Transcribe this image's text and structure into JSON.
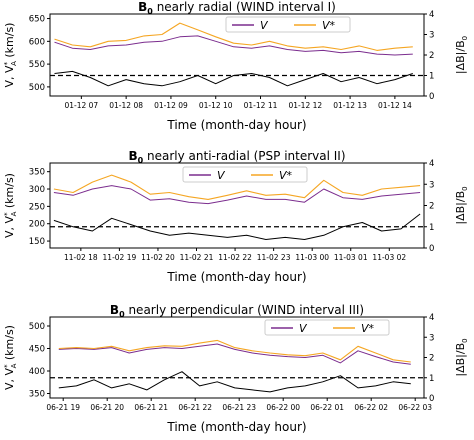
{
  "chart_data": [
    {
      "type": "line",
      "title_main": "B",
      "title_sub": "0",
      "title_rest": " nearly radial (WIND interval I)",
      "ylabel_left": "V, V",
      "ylabel_left_sup": "*",
      "ylabel_left_sub": "A",
      "ylabel_left_unit": " (km/s)",
      "ylabel_right": "|ΔB|/B",
      "ylabel_right_sub": "0",
      "xlabel": "Time (month-day hour)",
      "legend_position": "top-right",
      "ylim_left": [
        480,
        660
      ],
      "yticks_left": [
        500,
        550,
        600,
        650
      ],
      "ylim_right": [
        0,
        4
      ],
      "yticks_right": [
        0,
        1,
        2,
        3,
        4
      ],
      "xlim": [
        6.3,
        14.65
      ],
      "xticks": [
        7,
        8,
        9,
        10,
        11,
        12,
        13,
        14
      ],
      "xticklabels": [
        "01-12 07",
        "01-12 08",
        "01-12 09",
        "01-12 10",
        "01-12 11",
        "01-12 12",
        "01-12 13",
        "01-12 14"
      ],
      "reference_line": {
        "axis": "right",
        "value": 1,
        "style": "dashed"
      },
      "series": [
        {
          "name": "V",
          "color": "#7b2d8e",
          "axis": "left",
          "x": [
            6.4,
            6.8,
            7.2,
            7.6,
            8.0,
            8.4,
            8.8,
            9.2,
            9.6,
            10.0,
            10.4,
            10.8,
            11.2,
            11.6,
            12.0,
            12.4,
            12.8,
            13.2,
            13.6,
            14.0,
            14.4
          ],
          "y": [
            598,
            585,
            582,
            590,
            592,
            598,
            600,
            610,
            612,
            600,
            588,
            585,
            590,
            582,
            578,
            580,
            575,
            578,
            572,
            570,
            572
          ]
        },
        {
          "name": "V*",
          "color": "#f5a623",
          "axis": "left",
          "x": [
            6.4,
            6.8,
            7.2,
            7.6,
            8.0,
            8.4,
            8.8,
            9.2,
            9.6,
            10.0,
            10.4,
            10.8,
            11.2,
            11.6,
            12.0,
            12.4,
            12.8,
            13.2,
            13.6,
            14.0,
            14.4
          ],
          "y": [
            605,
            592,
            588,
            600,
            602,
            612,
            615,
            640,
            625,
            610,
            596,
            592,
            600,
            590,
            585,
            588,
            582,
            590,
            580,
            585,
            588
          ]
        },
        {
          "name": "",
          "color": "#000000",
          "axis": "right",
          "x": [
            6.4,
            6.8,
            7.2,
            7.6,
            8.0,
            8.4,
            8.8,
            9.2,
            9.6,
            10.0,
            10.4,
            10.8,
            11.2,
            11.6,
            12.0,
            12.4,
            12.8,
            13.2,
            13.6,
            14.0,
            14.4
          ],
          "y": [
            1.1,
            1.2,
            0.9,
            0.5,
            0.8,
            0.6,
            0.5,
            0.7,
            1.0,
            0.6,
            1.0,
            1.1,
            0.9,
            0.5,
            0.8,
            1.1,
            0.7,
            0.9,
            0.6,
            0.8,
            1.1
          ]
        }
      ]
    },
    {
      "type": "line",
      "title_main": "B",
      "title_sub": "0",
      "title_rest": " nearly anti-radial (PSP interval II)",
      "ylabel_left": "V, V",
      "ylabel_left_sup": "*",
      "ylabel_left_sub": "A",
      "ylabel_left_unit": " (km/s)",
      "ylabel_right": "|ΔB|/B",
      "ylabel_right_sub": "0",
      "xlabel": "Time (month-day hour)",
      "legend_position": "top-center",
      "ylim_left": [
        130,
        375
      ],
      "yticks_left": [
        150,
        200,
        250,
        300,
        350
      ],
      "ylim_right": [
        0,
        4
      ],
      "yticks_right": [
        0,
        1,
        2,
        3,
        4
      ],
      "xlim": [
        17.2,
        26.9
      ],
      "xticks": [
        18,
        19,
        20,
        21,
        22,
        23,
        24,
        25,
        26
      ],
      "xticklabels": [
        "11-02 18",
        "11-02 19",
        "11-02 20",
        "11-02 21",
        "11-02 22",
        "11-02 23",
        "11-03 00",
        "11-03 01",
        "11-03 02"
      ],
      "reference_line": {
        "axis": "right",
        "value": 1,
        "style": "dashed"
      },
      "series": [
        {
          "name": "V",
          "color": "#7b2d8e",
          "axis": "left",
          "x": [
            17.3,
            17.8,
            18.3,
            18.8,
            19.3,
            19.8,
            20.3,
            20.8,
            21.3,
            21.8,
            22.3,
            22.8,
            23.3,
            23.8,
            24.3,
            24.8,
            25.3,
            25.8,
            26.3,
            26.8
          ],
          "y": [
            290,
            282,
            300,
            310,
            300,
            268,
            272,
            262,
            258,
            268,
            280,
            270,
            270,
            262,
            300,
            275,
            270,
            280,
            285,
            290
          ]
        },
        {
          "name": "V*",
          "color": "#f5a623",
          "axis": "left",
          "x": [
            17.3,
            17.8,
            18.3,
            18.8,
            19.3,
            19.8,
            20.3,
            20.8,
            21.3,
            21.8,
            22.3,
            22.8,
            23.3,
            23.8,
            24.3,
            24.8,
            25.3,
            25.8,
            26.3,
            26.8
          ],
          "y": [
            300,
            290,
            320,
            340,
            320,
            285,
            290,
            278,
            270,
            282,
            295,
            282,
            285,
            275,
            325,
            290,
            282,
            300,
            305,
            310
          ]
        },
        {
          "name": "",
          "color": "#000000",
          "axis": "right",
          "x": [
            17.3,
            17.8,
            18.3,
            18.8,
            19.3,
            19.8,
            20.3,
            20.8,
            21.3,
            21.8,
            22.3,
            22.8,
            23.3,
            23.8,
            24.3,
            24.8,
            25.3,
            25.8,
            26.3,
            26.8
          ],
          "y": [
            1.3,
            1.0,
            0.8,
            1.4,
            1.1,
            0.8,
            0.6,
            0.7,
            0.6,
            0.5,
            0.6,
            0.4,
            0.5,
            0.4,
            0.6,
            1.0,
            1.2,
            0.8,
            0.9,
            1.6
          ]
        }
      ]
    },
    {
      "type": "line",
      "title_main": "B",
      "title_sub": "0",
      "title_rest": " nearly perpendicular (WIND interval III)",
      "ylabel_left": "V, V",
      "ylabel_left_sup": "*",
      "ylabel_left_sub": "A",
      "ylabel_left_unit": " (km/s)",
      "ylabel_right": "|ΔB|/B",
      "ylabel_right_sub": "0",
      "xlabel": "Time (month-day hour)",
      "legend_position": "top-right",
      "ylim_left": [
        340,
        520
      ],
      "yticks_left": [
        350,
        400,
        450,
        500
      ],
      "ylim_right": [
        0,
        4
      ],
      "yticks_right": [
        0,
        1,
        2,
        3,
        4
      ],
      "xlim": [
        18.7,
        27.2
      ],
      "xticks": [
        19,
        20,
        21,
        22,
        23,
        24,
        25,
        26,
        27
      ],
      "xticklabels": [
        "06-21 19",
        "06-21 20",
        "06-21 21",
        "06-21 22",
        "06-21 23",
        "06-22 00",
        "06-22 01",
        "06-22 02",
        "06-22 03"
      ],
      "reference_line": {
        "axis": "right",
        "value": 1,
        "style": "dashed"
      },
      "series": [
        {
          "name": "V",
          "color": "#7b2d8e",
          "axis": "left",
          "x": [
            18.9,
            19.3,
            19.7,
            20.1,
            20.5,
            20.9,
            21.3,
            21.7,
            22.1,
            22.5,
            22.9,
            23.3,
            23.7,
            24.1,
            24.5,
            24.9,
            25.3,
            25.7,
            26.1,
            26.5,
            26.9
          ],
          "y": [
            448,
            450,
            448,
            452,
            440,
            448,
            452,
            450,
            455,
            460,
            448,
            440,
            435,
            432,
            430,
            435,
            418,
            445,
            432,
            420,
            415
          ]
        },
        {
          "name": "V*",
          "color": "#f5a623",
          "axis": "left",
          "x": [
            18.9,
            19.3,
            19.7,
            20.1,
            20.5,
            20.9,
            21.3,
            21.7,
            22.1,
            22.5,
            22.9,
            23.3,
            23.7,
            24.1,
            24.5,
            24.9,
            25.3,
            25.7,
            26.1,
            26.5,
            26.9
          ],
          "y": [
            450,
            452,
            450,
            455,
            445,
            452,
            456,
            455,
            462,
            468,
            452,
            445,
            440,
            436,
            434,
            440,
            425,
            455,
            440,
            425,
            420
          ]
        },
        {
          "name": "",
          "color": "#000000",
          "axis": "right",
          "x": [
            18.9,
            19.3,
            19.7,
            20.1,
            20.5,
            20.9,
            21.3,
            21.7,
            22.1,
            22.5,
            22.9,
            23.3,
            23.7,
            24.1,
            24.5,
            24.9,
            25.3,
            25.7,
            26.1,
            26.5,
            26.9
          ],
          "y": [
            0.5,
            0.6,
            0.9,
            0.5,
            0.7,
            0.4,
            0.9,
            1.3,
            0.6,
            0.8,
            0.5,
            0.4,
            0.3,
            0.5,
            0.6,
            0.8,
            1.1,
            0.5,
            0.6,
            0.8,
            0.7
          ]
        }
      ]
    }
  ]
}
